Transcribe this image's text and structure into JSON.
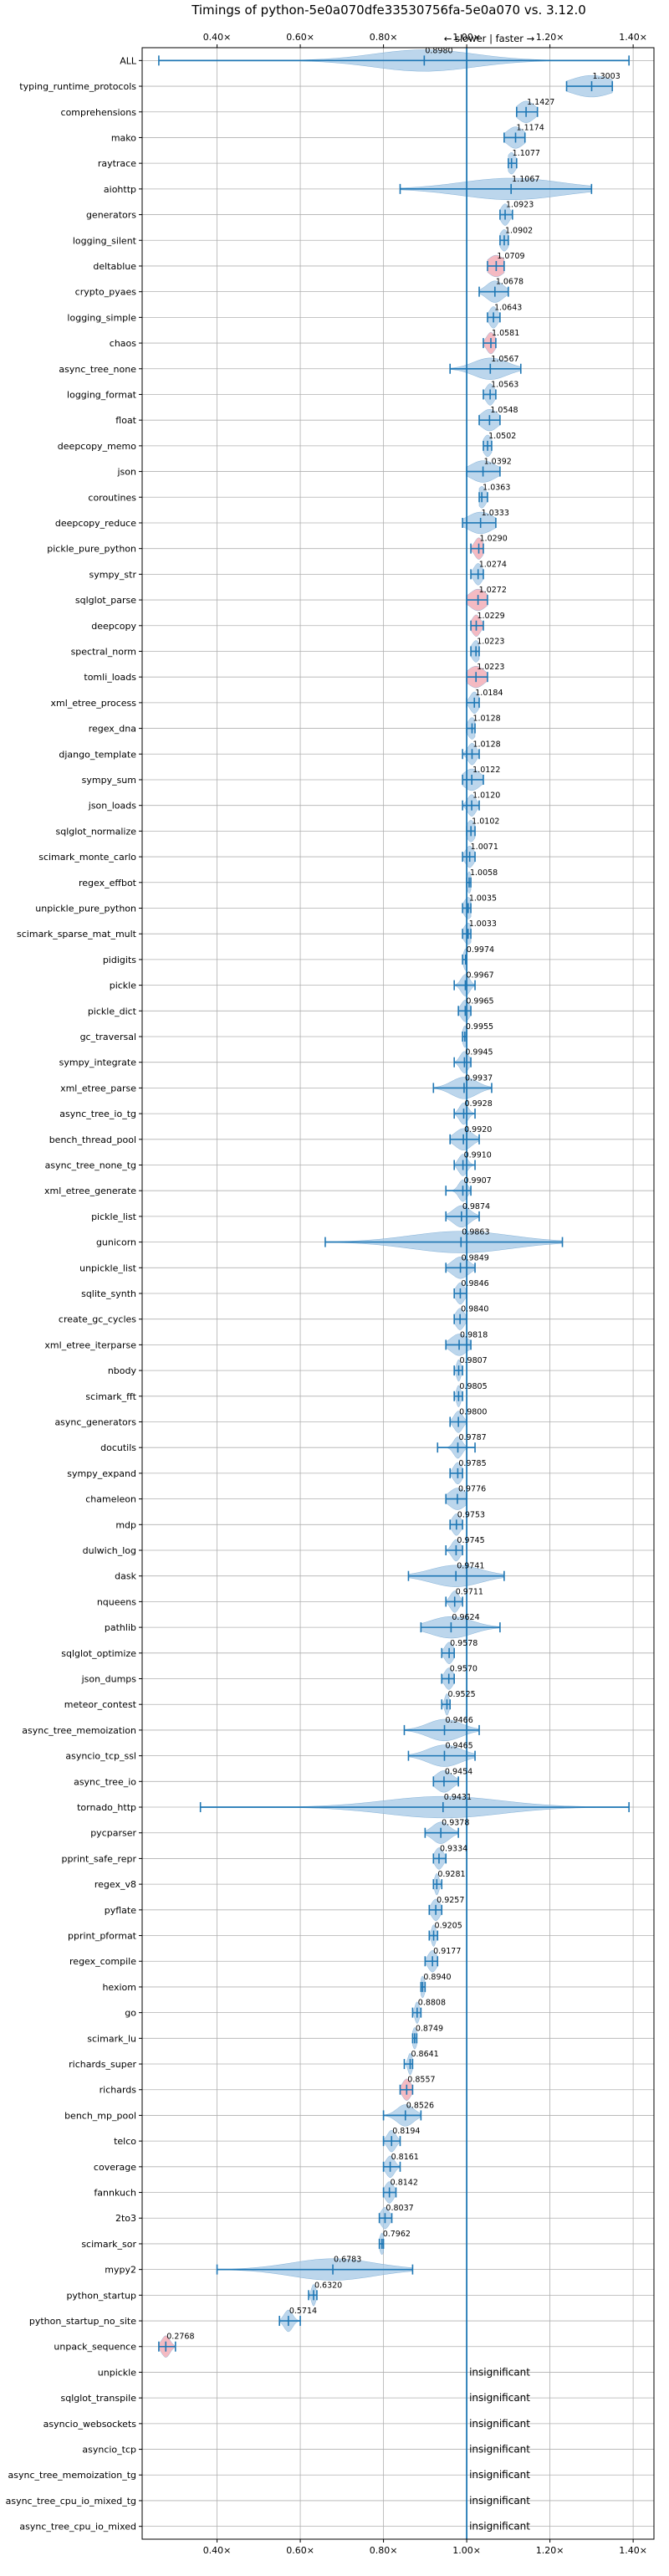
{
  "chart_data": {
    "type": "violin",
    "title": "Timings of python-5e0a070dfe33530756fa-5e0a070 vs. 3.12.0",
    "direction_label": "← slower | faster →",
    "xlim": [
      0.22,
      1.45
    ],
    "x_ticks": [
      0.4,
      0.6,
      0.8,
      1.0,
      1.2,
      1.4
    ],
    "x_tick_labels": [
      "0.40×",
      "0.60×",
      "0.80×",
      "1.00×",
      "1.20×",
      "1.40×"
    ],
    "reference_line": 1.0,
    "grid": true,
    "insignificant_label": "insignificant",
    "colors": {
      "violin": "#a6c8e6",
      "violin_edge": "#6fa3cf",
      "violin_highlight": "#f0a3ad",
      "line": "#1f77b4",
      "grid": "#b0b0b0"
    },
    "benchmarks": [
      {
        "name": "ALL",
        "value": 0.898,
        "label": "0.8980",
        "min": 0.26,
        "max": 1.39,
        "spread": 0.12
      },
      {
        "name": "typing_runtime_protocols",
        "value": 1.3003,
        "label": "1.3003",
        "min": 1.24,
        "max": 1.35,
        "spread": 0.05
      },
      {
        "name": "comprehensions",
        "value": 1.1427,
        "label": "1.1427",
        "min": 1.12,
        "max": 1.17,
        "spread": 0.02
      },
      {
        "name": "mako",
        "value": 1.1174,
        "label": "1.1174",
        "min": 1.09,
        "max": 1.14,
        "spread": 0.02
      },
      {
        "name": "raytrace",
        "value": 1.1077,
        "label": "1.1077",
        "min": 1.1,
        "max": 1.12,
        "spread": 0.01
      },
      {
        "name": "aiohttp",
        "value": 1.1067,
        "label": "1.1067",
        "min": 0.84,
        "max": 1.3,
        "spread": 0.12
      },
      {
        "name": "generators",
        "value": 1.0923,
        "label": "1.0923",
        "min": 1.08,
        "max": 1.11,
        "spread": 0.01
      },
      {
        "name": "logging_silent",
        "value": 1.0902,
        "label": "1.0902",
        "min": 1.08,
        "max": 1.1,
        "spread": 0.01
      },
      {
        "name": "deltablue",
        "value": 1.0709,
        "label": "1.0709",
        "min": 1.05,
        "max": 1.09,
        "spread": 0.02,
        "highlight": true
      },
      {
        "name": "crypto_pyaes",
        "value": 1.0678,
        "label": "1.0678",
        "min": 1.03,
        "max": 1.1,
        "spread": 0.02
      },
      {
        "name": "logging_simple",
        "value": 1.0643,
        "label": "1.0643",
        "min": 1.05,
        "max": 1.08,
        "spread": 0.01
      },
      {
        "name": "chaos",
        "value": 1.0581,
        "label": "1.0581",
        "min": 1.04,
        "max": 1.07,
        "spread": 0.01,
        "highlight": true
      },
      {
        "name": "async_tree_none",
        "value": 1.0567,
        "label": "1.0567",
        "min": 0.96,
        "max": 1.13,
        "spread": 0.04
      },
      {
        "name": "logging_format",
        "value": 1.0563,
        "label": "1.0563",
        "min": 1.04,
        "max": 1.07,
        "spread": 0.01
      },
      {
        "name": "float",
        "value": 1.0548,
        "label": "1.0548",
        "min": 1.03,
        "max": 1.08,
        "spread": 0.02
      },
      {
        "name": "deepcopy_memo",
        "value": 1.0502,
        "label": "1.0502",
        "min": 1.04,
        "max": 1.06,
        "spread": 0.01
      },
      {
        "name": "json",
        "value": 1.0392,
        "label": "1.0392",
        "min": 1.0,
        "max": 1.08,
        "spread": 0.03
      },
      {
        "name": "coroutines",
        "value": 1.0363,
        "label": "1.0363",
        "min": 1.03,
        "max": 1.05,
        "spread": 0.01
      },
      {
        "name": "deepcopy_reduce",
        "value": 1.0333,
        "label": "1.0333",
        "min": 0.99,
        "max": 1.07,
        "spread": 0.03
      },
      {
        "name": "pickle_pure_python",
        "value": 1.029,
        "label": "1.0290",
        "min": 1.01,
        "max": 1.04,
        "spread": 0.01,
        "highlight": true
      },
      {
        "name": "sympy_str",
        "value": 1.0274,
        "label": "1.0274",
        "min": 1.01,
        "max": 1.04,
        "spread": 0.01
      },
      {
        "name": "sqlglot_parse",
        "value": 1.0272,
        "label": "1.0272",
        "min": 1.0,
        "max": 1.05,
        "spread": 0.02,
        "highlight": true
      },
      {
        "name": "deepcopy",
        "value": 1.0229,
        "label": "1.0229",
        "min": 1.01,
        "max": 1.04,
        "spread": 0.01,
        "highlight": true
      },
      {
        "name": "spectral_norm",
        "value": 1.0223,
        "label": "1.0223",
        "min": 1.01,
        "max": 1.03,
        "spread": 0.01
      },
      {
        "name": "tomli_loads",
        "value": 1.0223,
        "label": "1.0223",
        "min": 1.0,
        "max": 1.05,
        "spread": 0.02,
        "highlight": true
      },
      {
        "name": "xml_etree_process",
        "value": 1.0184,
        "label": "1.0184",
        "min": 1.0,
        "max": 1.03,
        "spread": 0.01
      },
      {
        "name": "regex_dna",
        "value": 1.0128,
        "label": "1.0128",
        "min": 1.0,
        "max": 1.02,
        "spread": 0.01
      },
      {
        "name": "django_template",
        "value": 1.0128,
        "label": "1.0128",
        "min": 0.99,
        "max": 1.03,
        "spread": 0.01
      },
      {
        "name": "sympy_sum",
        "value": 1.0122,
        "label": "1.0122",
        "min": 0.99,
        "max": 1.04,
        "spread": 0.02
      },
      {
        "name": "json_loads",
        "value": 1.012,
        "label": "1.0120",
        "min": 0.99,
        "max": 1.03,
        "spread": 0.01
      },
      {
        "name": "sqlglot_normalize",
        "value": 1.0102,
        "label": "1.0102",
        "min": 1.0,
        "max": 1.02,
        "spread": 0.01
      },
      {
        "name": "scimark_monte_carlo",
        "value": 1.0071,
        "label": "1.0071",
        "min": 0.99,
        "max": 1.02,
        "spread": 0.01
      },
      {
        "name": "regex_effbot",
        "value": 1.0058,
        "label": "1.0058",
        "min": 1.0,
        "max": 1.01,
        "spread": 0.005
      },
      {
        "name": "unpickle_pure_python",
        "value": 1.0035,
        "label": "1.0035",
        "min": 0.99,
        "max": 1.01,
        "spread": 0.01
      },
      {
        "name": "scimark_sparse_mat_mult",
        "value": 1.0033,
        "label": "1.0033",
        "min": 0.99,
        "max": 1.01,
        "spread": 0.01
      },
      {
        "name": "pidigits",
        "value": 0.9974,
        "label": "0.9974",
        "min": 0.99,
        "max": 1.0,
        "spread": 0.005
      },
      {
        "name": "pickle",
        "value": 0.9967,
        "label": "0.9967",
        "min": 0.97,
        "max": 1.02,
        "spread": 0.01
      },
      {
        "name": "pickle_dict",
        "value": 0.9965,
        "label": "0.9965",
        "min": 0.98,
        "max": 1.01,
        "spread": 0.01
      },
      {
        "name": "gc_traversal",
        "value": 0.9955,
        "label": "0.9955",
        "min": 0.99,
        "max": 1.0,
        "spread": 0.005
      },
      {
        "name": "sympy_integrate",
        "value": 0.9945,
        "label": "0.9945",
        "min": 0.97,
        "max": 1.01,
        "spread": 0.01
      },
      {
        "name": "xml_etree_parse",
        "value": 0.9937,
        "label": "0.9937",
        "min": 0.92,
        "max": 1.06,
        "spread": 0.03
      },
      {
        "name": "async_tree_io_tg",
        "value": 0.9928,
        "label": "0.9928",
        "min": 0.97,
        "max": 1.02,
        "spread": 0.01
      },
      {
        "name": "bench_thread_pool",
        "value": 0.992,
        "label": "0.9920",
        "min": 0.96,
        "max": 1.03,
        "spread": 0.02
      },
      {
        "name": "async_tree_none_tg",
        "value": 0.991,
        "label": "0.9910",
        "min": 0.97,
        "max": 1.02,
        "spread": 0.01
      },
      {
        "name": "xml_etree_generate",
        "value": 0.9907,
        "label": "0.9907",
        "min": 0.95,
        "max": 1.01,
        "spread": 0.01
      },
      {
        "name": "pickle_list",
        "value": 0.9874,
        "label": "0.9874",
        "min": 0.95,
        "max": 1.03,
        "spread": 0.02
      },
      {
        "name": "gunicorn",
        "value": 0.9863,
        "label": "0.9863",
        "min": 0.66,
        "max": 1.23,
        "spread": 0.12
      },
      {
        "name": "unpickle_list",
        "value": 0.9849,
        "label": "0.9849",
        "min": 0.95,
        "max": 1.02,
        "spread": 0.02
      },
      {
        "name": "sqlite_synth",
        "value": 0.9846,
        "label": "0.9846",
        "min": 0.97,
        "max": 1.0,
        "spread": 0.01
      },
      {
        "name": "create_gc_cycles",
        "value": 0.984,
        "label": "0.9840",
        "min": 0.97,
        "max": 1.0,
        "spread": 0.01
      },
      {
        "name": "xml_etree_iterparse",
        "value": 0.9818,
        "label": "0.9818",
        "min": 0.95,
        "max": 1.01,
        "spread": 0.02
      },
      {
        "name": "nbody",
        "value": 0.9807,
        "label": "0.9807",
        "min": 0.97,
        "max": 0.99,
        "spread": 0.005
      },
      {
        "name": "scimark_fft",
        "value": 0.9805,
        "label": "0.9805",
        "min": 0.97,
        "max": 0.99,
        "spread": 0.005
      },
      {
        "name": "async_generators",
        "value": 0.98,
        "label": "0.9800",
        "min": 0.96,
        "max": 1.0,
        "spread": 0.01
      },
      {
        "name": "docutils",
        "value": 0.9787,
        "label": "0.9787",
        "min": 0.93,
        "max": 1.02,
        "spread": 0.01
      },
      {
        "name": "sympy_expand",
        "value": 0.9785,
        "label": "0.9785",
        "min": 0.96,
        "max": 0.99,
        "spread": 0.01
      },
      {
        "name": "chameleon",
        "value": 0.9776,
        "label": "0.9776",
        "min": 0.95,
        "max": 1.0,
        "spread": 0.02
      },
      {
        "name": "mdp",
        "value": 0.9753,
        "label": "0.9753",
        "min": 0.96,
        "max": 0.99,
        "spread": 0.01
      },
      {
        "name": "dulwich_log",
        "value": 0.9745,
        "label": "0.9745",
        "min": 0.95,
        "max": 0.99,
        "spread": 0.01
      },
      {
        "name": "dask",
        "value": 0.9741,
        "label": "0.9741",
        "min": 0.86,
        "max": 1.09,
        "spread": 0.06
      },
      {
        "name": "nqueens",
        "value": 0.9711,
        "label": "0.9711",
        "min": 0.95,
        "max": 0.99,
        "spread": 0.01
      },
      {
        "name": "pathlib",
        "value": 0.9624,
        "label": "0.9624",
        "min": 0.89,
        "max": 1.08,
        "spread": 0.05
      },
      {
        "name": "sqlglot_optimize",
        "value": 0.9578,
        "label": "0.9578",
        "min": 0.94,
        "max": 0.97,
        "spread": 0.01
      },
      {
        "name": "json_dumps",
        "value": 0.957,
        "label": "0.9570",
        "min": 0.94,
        "max": 0.97,
        "spread": 0.01
      },
      {
        "name": "meteor_contest",
        "value": 0.9525,
        "label": "0.9525",
        "min": 0.94,
        "max": 0.96,
        "spread": 0.005
      },
      {
        "name": "async_tree_memoization",
        "value": 0.9466,
        "label": "0.9466",
        "min": 0.85,
        "max": 1.03,
        "spread": 0.04
      },
      {
        "name": "asyncio_tcp_ssl",
        "value": 0.9465,
        "label": "0.9465",
        "min": 0.86,
        "max": 1.02,
        "spread": 0.04
      },
      {
        "name": "async_tree_io",
        "value": 0.9454,
        "label": "0.9454",
        "min": 0.92,
        "max": 0.98,
        "spread": 0.02
      },
      {
        "name": "tornado_http",
        "value": 0.9431,
        "label": "0.9431",
        "min": 0.36,
        "max": 1.39,
        "spread": 0.14
      },
      {
        "name": "pycparser",
        "value": 0.9378,
        "label": "0.9378",
        "min": 0.9,
        "max": 0.98,
        "spread": 0.02
      },
      {
        "name": "pprint_safe_repr",
        "value": 0.9334,
        "label": "0.9334",
        "min": 0.92,
        "max": 0.95,
        "spread": 0.01
      },
      {
        "name": "regex_v8",
        "value": 0.9281,
        "label": "0.9281",
        "min": 0.92,
        "max": 0.94,
        "spread": 0.005
      },
      {
        "name": "pyflate",
        "value": 0.9257,
        "label": "0.9257",
        "min": 0.91,
        "max": 0.94,
        "spread": 0.01
      },
      {
        "name": "pprint_pformat",
        "value": 0.9205,
        "label": "0.9205",
        "min": 0.91,
        "max": 0.93,
        "spread": 0.005
      },
      {
        "name": "regex_compile",
        "value": 0.9177,
        "label": "0.9177",
        "min": 0.9,
        "max": 0.93,
        "spread": 0.01
      },
      {
        "name": "hexiom",
        "value": 0.894,
        "label": "0.8940",
        "min": 0.89,
        "max": 0.9,
        "spread": 0.005
      },
      {
        "name": "go",
        "value": 0.8808,
        "label": "0.8808",
        "min": 0.87,
        "max": 0.89,
        "spread": 0.005
      },
      {
        "name": "scimark_lu",
        "value": 0.8749,
        "label": "0.8749",
        "min": 0.87,
        "max": 0.88,
        "spread": 0.005
      },
      {
        "name": "richards_super",
        "value": 0.8641,
        "label": "0.8641",
        "min": 0.85,
        "max": 0.87,
        "spread": 0.005
      },
      {
        "name": "richards",
        "value": 0.8557,
        "label": "0.8557",
        "min": 0.84,
        "max": 0.87,
        "spread": 0.01,
        "highlight": true
      },
      {
        "name": "bench_mp_pool",
        "value": 0.8526,
        "label": "0.8526",
        "min": 0.8,
        "max": 0.89,
        "spread": 0.02
      },
      {
        "name": "telco",
        "value": 0.8194,
        "label": "0.8194",
        "min": 0.8,
        "max": 0.84,
        "spread": 0.01
      },
      {
        "name": "coverage",
        "value": 0.8161,
        "label": "0.8161",
        "min": 0.8,
        "max": 0.84,
        "spread": 0.01
      },
      {
        "name": "fannkuch",
        "value": 0.8142,
        "label": "0.8142",
        "min": 0.8,
        "max": 0.83,
        "spread": 0.01
      },
      {
        "name": "2to3",
        "value": 0.8037,
        "label": "0.8037",
        "min": 0.79,
        "max": 0.82,
        "spread": 0.01
      },
      {
        "name": "scimark_sor",
        "value": 0.7962,
        "label": "0.7962",
        "min": 0.79,
        "max": 0.8,
        "spread": 0.005
      },
      {
        "name": "mypy2",
        "value": 0.6783,
        "label": "0.6783",
        "min": 0.4,
        "max": 0.87,
        "spread": 0.1
      },
      {
        "name": "python_startup",
        "value": 0.632,
        "label": "0.6320",
        "min": 0.62,
        "max": 0.64,
        "spread": 0.005
      },
      {
        "name": "python_startup_no_site",
        "value": 0.5714,
        "label": "0.5714",
        "min": 0.55,
        "max": 0.6,
        "spread": 0.01
      },
      {
        "name": "unpack_sequence",
        "value": 0.2768,
        "label": "0.2768",
        "min": 0.26,
        "max": 0.3,
        "spread": 0.01,
        "highlight": true
      },
      {
        "name": "unpickle",
        "insignificant": true
      },
      {
        "name": "sqlglot_transpile",
        "insignificant": true
      },
      {
        "name": "asyncio_websockets",
        "insignificant": true
      },
      {
        "name": "asyncio_tcp",
        "insignificant": true
      },
      {
        "name": "async_tree_memoization_tg",
        "insignificant": true
      },
      {
        "name": "async_tree_cpu_io_mixed_tg",
        "insignificant": true
      },
      {
        "name": "async_tree_cpu_io_mixed",
        "insignificant": true
      }
    ]
  }
}
